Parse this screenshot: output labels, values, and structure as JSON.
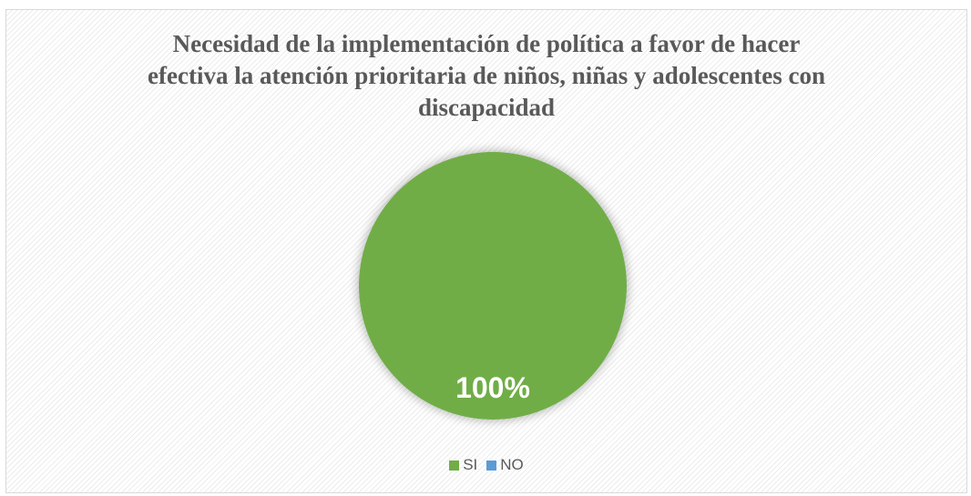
{
  "chart_data": {
    "type": "pie",
    "title": "Necesidad de  la implementación de  política a favor de hacer\nefectiva la atención prioritaria de niños, niñas y adolescentes con\ndiscapacidad",
    "categories": [
      "SI",
      "NO"
    ],
    "values": [
      100,
      0
    ],
    "data_labels": [
      "100%"
    ],
    "colors": [
      "#70ad47",
      "#5b9bd5"
    ],
    "data_label_color": "#ffffff",
    "legend_position": "bottom"
  }
}
